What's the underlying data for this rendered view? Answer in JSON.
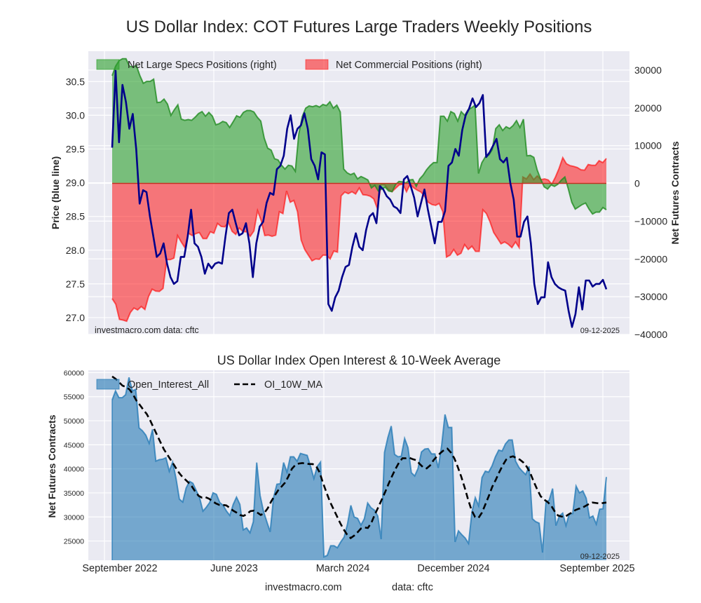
{
  "chart_data": [
    {
      "type": "line",
      "title": "US Dollar Index: COT Futures Large Traders Weekly Positions",
      "ylabel": "Price (blue line)",
      "ylabel_right": "Net Futures Contracts",
      "ylim": [
        26.75,
        30.95
      ],
      "ylim_right": [
        -40000,
        35000
      ],
      "yticks": [
        27.0,
        27.5,
        28.0,
        28.5,
        29.0,
        29.5,
        30.0,
        30.5
      ],
      "ytick_labels": [
        "27.0",
        "27.5",
        "28.0",
        "28.5",
        "29.0",
        "29.5",
        "30.0",
        "30.5"
      ],
      "yticks_right": [
        -40000,
        -30000,
        -20000,
        -10000,
        0,
        10000,
        20000,
        30000
      ],
      "ytick_labels_right": [
        "−40000",
        "−30000",
        "−20000",
        "−10000",
        "0",
        "10000",
        "20000",
        "30000"
      ],
      "grid": true,
      "legend_position": "top-left",
      "legend": [
        "Net Large Specs Positions (right)",
        "Net Commercial Positions (right)"
      ],
      "annotations": {
        "source": "investmacro.com    data: cftc",
        "date": "09-12-2025"
      },
      "x_start": "2022-08-16",
      "x_end": "2025-09-09",
      "series": [
        {
          "name": "Price",
          "color": "#00008b",
          "values": [
            29.52,
            30.66,
            29.6,
            30.45,
            30.2,
            29.8,
            30.02,
            29.5,
            28.69,
            28.89,
            28.86,
            28.5,
            28.2,
            27.9,
            27.95,
            28.1,
            27.8,
            27.6,
            27.5,
            27.54,
            27.9,
            27.9,
            28.2,
            28.6,
            28.1,
            28.05,
            27.9,
            27.65,
            27.8,
            27.73,
            27.8,
            27.82,
            27.8,
            28.2,
            28.55,
            28.6,
            28.4,
            28.22,
            28.25,
            28.4,
            28.1,
            27.6,
            28.1,
            28.35,
            28.42,
            28.7,
            28.85,
            28.82,
            29.2,
            29.25,
            29.4,
            29.8,
            30.0,
            29.65,
            29.8,
            29.85,
            30.03,
            29.8,
            29.35,
            29.25,
            29.05,
            29.45,
            29.42,
            27.2,
            27.1,
            27.3,
            27.4,
            27.6,
            27.75,
            27.78,
            28.05,
            28.25,
            28.05,
            28.0,
            28.3,
            28.5,
            28.55,
            28.4,
            28.95,
            28.9,
            28.8,
            28.75,
            28.65,
            28.62,
            28.55,
            29.05,
            29.1,
            28.95,
            28.78,
            28.5,
            28.7,
            28.9,
            28.6,
            28.35,
            28.1,
            28.42,
            28.42,
            28.58,
            29.25,
            29.3,
            29.5,
            29.4,
            29.78,
            30.0,
            30.1,
            30.25,
            30.12,
            30.18,
            30.3,
            29.38,
            29.45,
            29.55,
            29.65,
            29.35,
            29.3,
            29.37,
            29.0,
            28.75,
            28.2,
            28.2,
            28.42,
            28.5,
            28.1,
            27.5,
            27.2,
            27.3,
            27.3,
            27.82,
            27.6,
            27.5,
            27.45,
            27.42,
            27.4,
            27.1,
            26.86,
            27.05,
            27.45,
            27.12,
            27.55,
            27.55,
            27.46,
            27.5,
            27.5,
            27.56,
            27.42
          ]
        },
        {
          "name": "Net Large Specs Positions (right)",
          "color": "#2ca02c",
          "values": [
            28500,
            31000,
            32500,
            33000,
            33000,
            31000,
            30800,
            31200,
            28600,
            26500,
            27000,
            27000,
            27600,
            21400,
            21500,
            22300,
            21000,
            18000,
            19500,
            20800,
            17000,
            16700,
            16900,
            16700,
            17500,
            18500,
            19000,
            17800,
            18800,
            17800,
            15500,
            15800,
            16400,
            16100,
            14800,
            16300,
            17900,
            17500,
            18800,
            19300,
            19300,
            18900,
            17500,
            16500,
            12000,
            9300,
            8800,
            6500,
            6200,
            4800,
            3800,
            4800,
            4600,
            3200,
            13000,
            17700,
            19900,
            20500,
            20300,
            20600,
            20200,
            20900,
            20600,
            21600,
            19900,
            20700,
            18900,
            3800,
            2800,
            2300,
            2700,
            1200,
            1800,
            1400,
            900,
            -1200,
            -500,
            -2000,
            -1500,
            -1000,
            -2000,
            -2200,
            -300,
            500,
            400,
            100,
            900,
            1000,
            -800,
            1200,
            2200,
            3600,
            4700,
            5500,
            5500,
            17800,
            17800,
            16500,
            19000,
            18500,
            16500,
            19000,
            18000,
            19500,
            20000,
            20700,
            2600,
            5500,
            7000,
            7500,
            9000,
            14500,
            15500,
            14000,
            15000,
            14500,
            15300,
            16600,
            14800,
            17000,
            7300,
            7400,
            6900,
            3500,
            1100,
            -900,
            -1500,
            -400,
            -800,
            -200,
            900,
            1700,
            -1500,
            -5000,
            -6800,
            -6200,
            -5600,
            -5200,
            -6800,
            -8100,
            -7600,
            -7600,
            -6400,
            -7000
          ]
        },
        {
          "name": "Net Commercial Positions (right)",
          "color": "#ff0000",
          "values": [
            -30500,
            -32000,
            -36000,
            -36200,
            -36500,
            -34200,
            -33000,
            -33500,
            -32600,
            -33400,
            -30000,
            -28000,
            -28500,
            -28600,
            -27800,
            -20200,
            -20200,
            -19800,
            -13800,
            -15500,
            -17000,
            -13200,
            -13800,
            -13300,
            -13000,
            -14600,
            -14600,
            -12800,
            -13200,
            -10600,
            -11400,
            -11500,
            -10300,
            -12700,
            -13500,
            -11800,
            -12800,
            -12800,
            -14000,
            -12600,
            -7200,
            -9800,
            -13800,
            -13700,
            -14000,
            -13700,
            -7500,
            -8000,
            -2000,
            -5000,
            -4500,
            -7500,
            -15000,
            -17500,
            -19000,
            -20500,
            -20000,
            -20100,
            -19000,
            -19000,
            -20000,
            -17900,
            -18200,
            -3300,
            -2300,
            -2700,
            -2200,
            -2800,
            -1200,
            -3000,
            -3100,
            -3400,
            -4100,
            -6700,
            -300,
            -400,
            -1600,
            -2200,
            -1300,
            -400,
            -200,
            -2200,
            -200,
            -1200,
            -1800,
            -2300,
            -3500,
            -5000,
            -5600,
            -5800,
            -5300,
            -7500,
            -19500,
            -19000,
            -17500,
            -19000,
            -18500,
            -16200,
            -17500,
            -16600,
            -18000,
            -18000,
            -7000,
            -8000,
            -10200,
            -13000,
            -14500,
            -16000,
            -15500,
            -16100,
            -17000,
            -15500,
            -17000,
            1700,
            1200,
            2500,
            1000,
            2000,
            1000,
            1200,
            900,
            -200,
            1700,
            4000,
            6800,
            5200,
            4700,
            4500,
            4200,
            3600,
            3500,
            5000,
            4800,
            4800,
            6000,
            5500,
            6600
          ]
        }
      ]
    },
    {
      "type": "area",
      "title": "US Dollar Index Open Interest & 10-Week Average",
      "ylabel": "Net Futures Contracts",
      "ylim": [
        21000,
        60500
      ],
      "yticks": [
        25000,
        30000,
        35000,
        40000,
        45000,
        50000,
        55000,
        60000
      ],
      "ytick_labels": [
        "25000",
        "30000",
        "35000",
        "40000",
        "45000",
        "50000",
        "55000",
        "60000"
      ],
      "xtick_labels": [
        "September 2022",
        "June 2023",
        "March 2024",
        "December 2024",
        "September 2025"
      ],
      "grid": true,
      "legend_position": "top-left",
      "legend": [
        "Open_Interest_All",
        "OI_10W_MA"
      ],
      "annotations": {
        "date": "09-12-2025"
      },
      "series": [
        {
          "name": "Open_Interest_All",
          "color": "#1f77b4",
          "values": [
            54300,
            56200,
            54800,
            54800,
            55400,
            59000,
            56200,
            56500,
            48500,
            47900,
            47000,
            45300,
            48200,
            41600,
            41900,
            42000,
            42300,
            39500,
            41400,
            38000,
            33700,
            33100,
            36000,
            37400,
            37000,
            35500,
            34000,
            31200,
            32000,
            33000,
            35000,
            34700,
            33000,
            32400,
            31200,
            30300,
            32600,
            34100,
            32600,
            27300,
            27700,
            26700,
            29000,
            41300,
            34500,
            31200,
            29000,
            26900,
            34000,
            36800,
            36900,
            41300,
            39300,
            42500,
            42500,
            41600,
            43200,
            43000,
            42800,
            40500,
            38000,
            40500,
            41400,
            21700,
            22000,
            24000,
            24000,
            23600,
            24800,
            25800,
            28500,
            32400,
            30000,
            29700,
            28300,
            29600,
            32900,
            31900,
            31400,
            30200,
            25400,
            43400,
            46500,
            48900,
            43000,
            42500,
            42600,
            46300,
            44400,
            39200,
            38500,
            40100,
            43500,
            44100,
            44200,
            43100,
            43100,
            40200,
            44800,
            51300,
            48600,
            48600,
            24800,
            27100,
            26300,
            25600,
            24500,
            31000,
            34000,
            32300,
            38200,
            39500,
            39300,
            40600,
            42500,
            43900,
            43700,
            45200,
            46000,
            46000,
            41600,
            40300,
            39500,
            38800,
            40500,
            29600,
            29000,
            28700,
            22600,
            33000,
            33500,
            35900,
            28200,
            30200,
            30800,
            28200,
            30700,
            30700,
            36400,
            35000,
            35400,
            33900,
            29800,
            30200,
            28500,
            31600,
            31700,
            38300
          ]
        },
        {
          "name": "OI_10W_MA",
          "color": "#000000",
          "values": [
            59200,
            58700,
            58000,
            57300,
            57000,
            56500,
            55500,
            54200,
            53300,
            52300,
            51400,
            50100,
            48500,
            47000,
            45500,
            44000,
            42900,
            41800,
            40700,
            39500,
            38600,
            37900,
            37200,
            36400,
            35300,
            34400,
            34000,
            34100,
            33800,
            33300,
            32800,
            32500,
            32500,
            32400,
            31900,
            31300,
            30900,
            30400,
            30200,
            30600,
            31200,
            31300,
            30900,
            30400,
            30800,
            31800,
            33200,
            34400,
            35500,
            36300,
            37100,
            38400,
            40000,
            40800,
            41100,
            41200,
            41100,
            41000,
            41000,
            40600,
            39300,
            37100,
            35100,
            33200,
            31700,
            30200,
            28700,
            27400,
            26300,
            25600,
            26100,
            26800,
            27600,
            27800,
            27700,
            28800,
            30500,
            32000,
            33600,
            35200,
            36900,
            38500,
            40000,
            41300,
            42200,
            42200,
            42300,
            42000,
            41800,
            41000,
            40300,
            40100,
            40700,
            41800,
            42600,
            43300,
            43900,
            44200,
            43400,
            42200,
            40400,
            38400,
            36100,
            33600,
            31400,
            30000,
            29800,
            30900,
            32600,
            34400,
            36300,
            37700,
            39300,
            40700,
            41900,
            42400,
            42600,
            42200,
            41900,
            41300,
            40400,
            39100,
            37300,
            35700,
            34300,
            33600,
            33100,
            32400,
            31200,
            30300,
            30100,
            30000,
            30500,
            30900,
            31400,
            31700,
            31900,
            32300,
            32700,
            33000,
            32900,
            32800,
            32900,
            33000
          ]
        }
      ]
    }
  ],
  "footer": {
    "site": "investmacro.com",
    "data": "data: cftc"
  }
}
